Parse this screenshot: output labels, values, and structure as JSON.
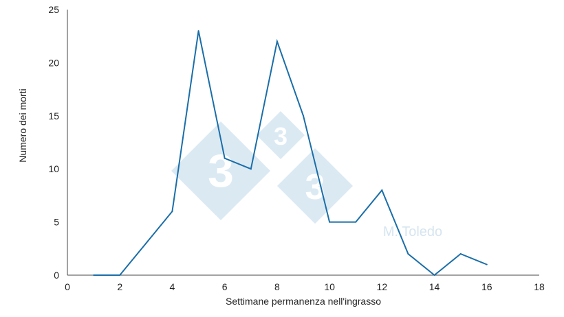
{
  "chart_data": {
    "type": "line",
    "title": "",
    "xlabel": "Settimane permanenza nell'ingrasso",
    "ylabel": "Numero dei morti",
    "xlim": [
      0,
      18
    ],
    "ylim": [
      0,
      25
    ],
    "xticks": [
      0,
      2,
      4,
      6,
      8,
      10,
      12,
      14,
      16,
      18
    ],
    "yticks": [
      0,
      5,
      10,
      15,
      20,
      25
    ],
    "grid": false,
    "series": [
      {
        "x": [
          1,
          2,
          3,
          4,
          5,
          6,
          7,
          8,
          9,
          10,
          11,
          12,
          13,
          14,
          15,
          16
        ],
        "values": [
          0,
          0,
          3,
          6,
          23,
          11,
          10,
          22,
          15,
          5,
          5,
          8,
          2,
          0,
          2,
          1
        ]
      }
    ],
    "line_color": "#1a6ea8"
  },
  "watermark": {
    "logo_number": "3",
    "credit": "M. Toledo",
    "diamond_color": "#cfe1ef",
    "credit_color": "#d6e5f0"
  }
}
